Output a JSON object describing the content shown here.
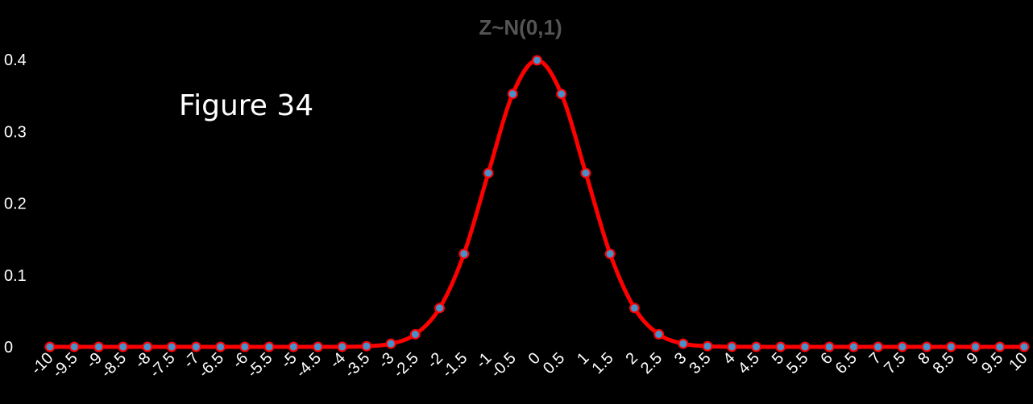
{
  "chart_data": {
    "type": "line",
    "title": "Z~N(0,1)",
    "annotation": "Figure 34",
    "xlabel": "",
    "ylabel": "",
    "x": [
      -10,
      -9.5,
      -9,
      -8.5,
      -8,
      -7.5,
      -7,
      -6.5,
      -6,
      -5.5,
      -5,
      -4.5,
      -4,
      -3.5,
      -3,
      -2.5,
      -2,
      -1.5,
      -1,
      -0.5,
      0,
      0.5,
      1,
      1.5,
      2,
      2.5,
      3,
      3.5,
      4,
      4.5,
      5,
      5.5,
      6,
      6.5,
      7,
      7.5,
      8,
      8.5,
      9,
      9.5,
      10
    ],
    "x_tick_labels": [
      "-10",
      "-9.5",
      "-9",
      "-8.5",
      "-8",
      "-7.5",
      "-7",
      "-6.5",
      "-6",
      "-5.5",
      "-5",
      "-4.5",
      "-4",
      "-3.5",
      "-3",
      "-2.5",
      "-2",
      "-1.5",
      "-1",
      "-0.5",
      "0",
      "0.5",
      "1",
      "1.5",
      "2",
      "2.5",
      "3",
      "3.5",
      "4",
      "4.5",
      "5",
      "5.5",
      "6",
      "6.5",
      "7",
      "7.5",
      "8",
      "8.5",
      "9",
      "9.5",
      "10"
    ],
    "series": [
      {
        "values": [
          0,
          0,
          0,
          0,
          0,
          0,
          0,
          0,
          0,
          0,
          0,
          0,
          0.0001,
          0.0009,
          0.0044,
          0.0175,
          0.054,
          0.1295,
          0.242,
          0.3521,
          0.3989,
          0.3521,
          0.242,
          0.1295,
          0.054,
          0.0175,
          0.0044,
          0.0009,
          0.0001,
          0,
          0,
          0,
          0,
          0,
          0,
          0,
          0,
          0,
          0,
          0,
          0
        ],
        "line_color": "#ff0000",
        "marker_color": "#4a90c8"
      }
    ],
    "y_ticks": [
      0,
      0.1,
      0.2,
      0.3,
      0.4
    ],
    "y_tick_labels": [
      "0",
      "0.1",
      "0.2",
      "0.3",
      "0.4"
    ],
    "ylim": [
      0,
      0.4
    ],
    "xlim": [
      -10,
      10
    ],
    "grid": false,
    "legend": "none",
    "background": "#000000"
  }
}
